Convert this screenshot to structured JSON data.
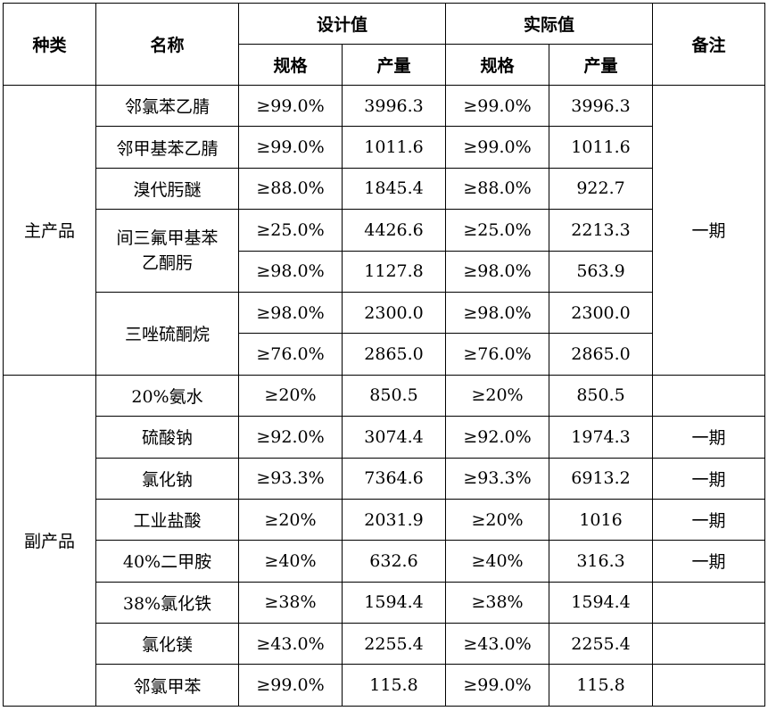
{
  "header": {
    "category": "种类",
    "name": "名称",
    "design": "设计值",
    "actual": "实际值",
    "note": "备注",
    "spec": "规格",
    "output": "产量"
  },
  "groups": {
    "main": "主产品",
    "by": "副产品"
  },
  "rows": [
    {
      "name": "邻氯苯乙腈",
      "d_spec": "≥99.0%",
      "d_out": "3996.3",
      "a_spec": "≥99.0%",
      "a_out": "3996.3"
    },
    {
      "name": "邻甲基苯乙腈",
      "d_spec": "≥99.0%",
      "d_out": "1011.6",
      "a_spec": "≥99.0%",
      "a_out": "1011.6"
    },
    {
      "name": "溴代肟醚",
      "d_spec": "≥88.0%",
      "d_out": "1845.4",
      "a_spec": "≥88.0%",
      "a_out": "922.7"
    },
    {
      "name": "间三氟甲基苯乙酮肟",
      "d_spec": "≥25.0%",
      "d_out": "4426.6",
      "a_spec": "≥25.0%",
      "a_out": "2213.3"
    },
    {
      "name": "",
      "d_spec": "≥98.0%",
      "d_out": "1127.8",
      "a_spec": "≥98.0%",
      "a_out": "563.9"
    },
    {
      "name": "三唑硫酮烷",
      "d_spec": "≥98.0%",
      "d_out": "2300.0",
      "a_spec": "≥98.0%",
      "a_out": "2300.0"
    },
    {
      "name": "",
      "d_spec": "≥76.0%",
      "d_out": "2865.0",
      "a_spec": "≥76.0%",
      "a_out": "2865.0"
    },
    {
      "name": "20%氨水",
      "d_spec": "≥20%",
      "d_out": "850.5",
      "a_spec": "≥20%",
      "a_out": "850.5",
      "note": ""
    },
    {
      "name": "硫酸钠",
      "d_spec": "≥92.0%",
      "d_out": "3074.4",
      "a_spec": "≥92.0%",
      "a_out": "1974.3",
      "note": "一期"
    },
    {
      "name": "氯化钠",
      "d_spec": "≥93.3%",
      "d_out": "7364.6",
      "a_spec": "≥93.3%",
      "a_out": "6913.2",
      "note": "一期"
    },
    {
      "name": "工业盐酸",
      "d_spec": "≥20%",
      "d_out": "2031.9",
      "a_spec": "≥20%",
      "a_out": "1016",
      "note": "一期"
    },
    {
      "name": "40%二甲胺",
      "d_spec": "≥40%",
      "d_out": "632.6",
      "a_spec": "≥40%",
      "a_out": "316.3",
      "note": "一期"
    },
    {
      "name": "38%氯化铁",
      "d_spec": "≥38%",
      "d_out": "1594.4",
      "a_spec": "≥38%",
      "a_out": "1594.4",
      "note": ""
    },
    {
      "name": "氯化镁",
      "d_spec": "≥43.0%",
      "d_out": "2255.4",
      "a_spec": "≥43.0%",
      "a_out": "2255.4",
      "note": ""
    },
    {
      "name": "邻氯甲苯",
      "d_spec": "≥99.0%",
      "d_out": "115.8",
      "a_spec": "≥99.0%",
      "a_out": "115.8",
      "note": ""
    }
  ],
  "main_note": "一期",
  "names_split": {
    "r3_line1": "间三氟甲基苯",
    "r3_line2": "乙酮肟"
  }
}
